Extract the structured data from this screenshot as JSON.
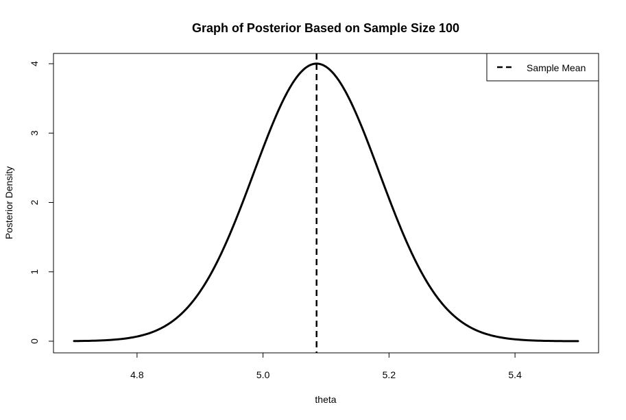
{
  "chart_data": {
    "type": "line",
    "title": "Graph of Posterior Based on Sample Size 100",
    "xlabel": "theta",
    "ylabel": "Posterior Density",
    "xlim": [
      4.7,
      5.5
    ],
    "ylim": [
      0,
      4
    ],
    "x_ticks": [
      "4.8",
      "5.0",
      "5.2",
      "5.4"
    ],
    "y_ticks": [
      "0",
      "1",
      "2",
      "3",
      "4"
    ],
    "grid": false,
    "legend_position": "top-right",
    "legend": [
      {
        "label": "Sample Mean",
        "style": "dashed"
      }
    ],
    "sample_mean": 5.085,
    "posterior": {
      "mean": 5.085,
      "sd": 0.0997
    },
    "series": [
      {
        "x": [
          4.7,
          4.75,
          4.8,
          4.85,
          4.9,
          4.95,
          5.0,
          5.05,
          5.085,
          5.1,
          5.15,
          5.2,
          5.25,
          5.3,
          5.35,
          5.4,
          5.45,
          5.5
        ],
        "values": [
          0.002,
          0.014,
          0.077,
          0.31,
          0.9,
          1.61,
          2.78,
          3.76,
          4.0,
          3.96,
          3.25,
          2.05,
          1.02,
          0.39,
          0.12,
          0.028,
          0.005,
          0.001
        ]
      }
    ],
    "line_color": "#000000"
  }
}
